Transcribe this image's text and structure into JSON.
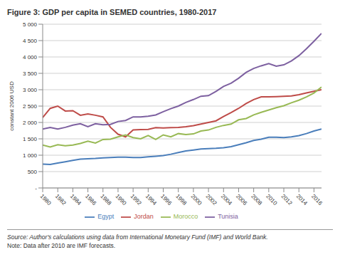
{
  "chart_data": {
    "type": "line",
    "title": "Figure 3: GDP per capita in SEMED countries, 1980-2017",
    "y_label": "constant 2006 USD",
    "source": "Source: Author's calculations using data from International Monetary Fund (IMF) and World Bank.",
    "note": "Note: Data after 2010 are IMF forecasts.",
    "x": [
      1980,
      1981,
      1982,
      1983,
      1984,
      1985,
      1986,
      1987,
      1988,
      1989,
      1990,
      1991,
      1992,
      1993,
      1994,
      1995,
      1996,
      1997,
      1998,
      1999,
      2000,
      2001,
      2002,
      2003,
      2004,
      2005,
      2006,
      2007,
      2008,
      2009,
      2010,
      2011,
      2012,
      2013,
      2014,
      2015,
      2016,
      2017
    ],
    "xlim": [
      1980,
      2017
    ],
    "xticks": [
      1980,
      1982,
      1984,
      1986,
      1988,
      1990,
      1992,
      1994,
      1996,
      1998,
      2000,
      2002,
      2004,
      2006,
      2008,
      2010,
      2012,
      2014,
      2016
    ],
    "ylim": [
      0,
      5000
    ],
    "yticks": [
      {
        "value": 0,
        "label": "-"
      },
      500,
      {
        "value": 1000,
        "label": "1 000"
      },
      {
        "value": 1500,
        "label": "1 500"
      },
      {
        "value": 2000,
        "label": "2 000"
      },
      {
        "value": 2500,
        "label": "2 500"
      },
      {
        "value": 3000,
        "label": "3 000"
      },
      {
        "value": 3500,
        "label": "3 500"
      },
      {
        "value": 4000,
        "label": "4 000"
      },
      {
        "value": 4500,
        "label": "4 500"
      },
      {
        "value": 5000,
        "label": "5 000"
      }
    ],
    "grid": true,
    "legend": "bottom",
    "series": [
      {
        "name": "Egypt",
        "color": "#4a7ebb",
        "values": [
          730,
          720,
          760,
          800,
          840,
          880,
          890,
          900,
          920,
          930,
          940,
          940,
          930,
          930,
          950,
          970,
          990,
          1030,
          1080,
          1130,
          1160,
          1190,
          1200,
          1210,
          1230,
          1260,
          1320,
          1380,
          1450,
          1490,
          1550,
          1550,
          1540,
          1560,
          1600,
          1660,
          1740,
          1800
        ]
      },
      {
        "name": "Jordan",
        "color": "#be4b48",
        "values": [
          2150,
          2430,
          2500,
          2350,
          2360,
          2220,
          2260,
          2220,
          2170,
          1850,
          1640,
          1560,
          1770,
          1780,
          1790,
          1840,
          1830,
          1840,
          1850,
          1870,
          1900,
          1950,
          2000,
          2050,
          2180,
          2300,
          2430,
          2580,
          2700,
          2780,
          2780,
          2790,
          2800,
          2810,
          2850,
          2900,
          2950,
          3000
        ]
      },
      {
        "name": "Morocco",
        "color": "#98b954",
        "values": [
          1310,
          1250,
          1320,
          1290,
          1310,
          1360,
          1430,
          1370,
          1480,
          1490,
          1560,
          1620,
          1540,
          1500,
          1600,
          1480,
          1620,
          1560,
          1660,
          1630,
          1650,
          1740,
          1770,
          1850,
          1910,
          1950,
          2080,
          2120,
          2230,
          2310,
          2380,
          2450,
          2510,
          2600,
          2680,
          2780,
          2900,
          3080
        ]
      },
      {
        "name": "Tunisia",
        "color": "#7d60a0",
        "values": [
          1800,
          1850,
          1800,
          1850,
          1920,
          1960,
          1870,
          1960,
          1930,
          1940,
          2030,
          2060,
          2170,
          2170,
          2190,
          2230,
          2330,
          2420,
          2500,
          2610,
          2700,
          2800,
          2820,
          2950,
          3100,
          3200,
          3350,
          3530,
          3650,
          3730,
          3800,
          3720,
          3760,
          3880,
          4040,
          4250,
          4480,
          4720
        ]
      }
    ]
  }
}
